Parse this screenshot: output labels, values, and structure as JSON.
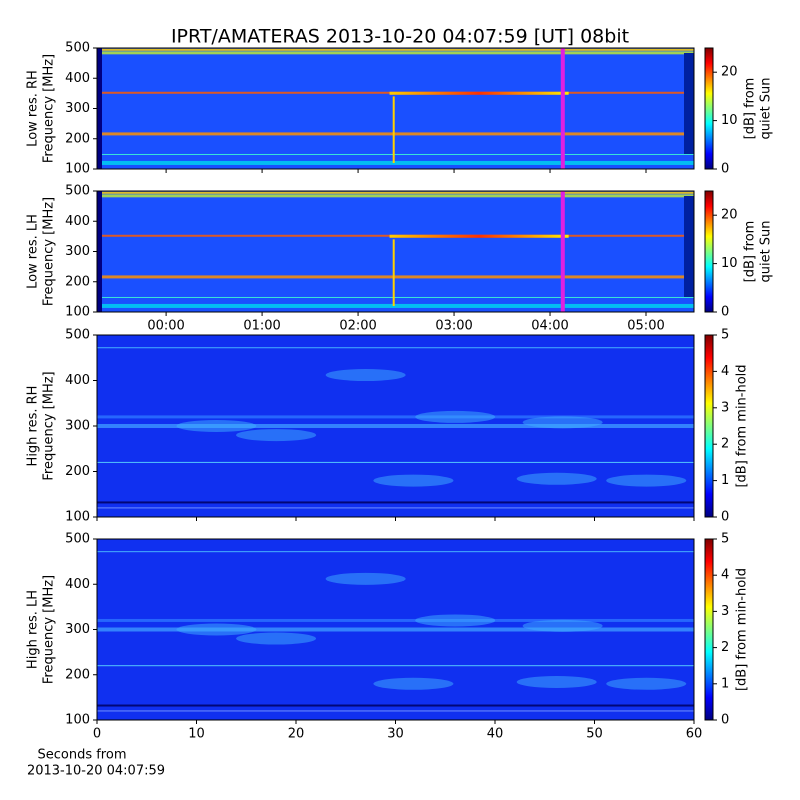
{
  "chart_data": [
    {
      "type": "heatmap",
      "title": "IPRT/AMATERAS 2013-10-20 04:07:59 [UT]   08bit",
      "ylabel": [
        "Low res. RH",
        "Frequency [MHz]"
      ],
      "ylim": [
        100,
        500
      ],
      "yticks": [
        100,
        200,
        300,
        400,
        500
      ],
      "xlim": [
        -0.72,
        5.5
      ],
      "cursor": {
        "x": 4.133,
        "color": "#e020e0"
      },
      "colorbar": {
        "label": [
          "[dB] from",
          "quiet Sun"
        ],
        "clim": [
          0,
          25
        ],
        "ticks": [
          0,
          10,
          20
        ]
      }
    },
    {
      "type": "heatmap",
      "ylabel": [
        "Low res. LH",
        "Frequency [MHz]"
      ],
      "ylim": [
        100,
        500
      ],
      "yticks": [
        100,
        200,
        300,
        400,
        500
      ],
      "xlim": [
        -0.72,
        5.5
      ],
      "xticks": [
        {
          "value": 0,
          "label": "00:00"
        },
        {
          "value": 1,
          "label": "01:00"
        },
        {
          "value": 2,
          "label": "02:00"
        },
        {
          "value": 3,
          "label": "03:00"
        },
        {
          "value": 4,
          "label": "04:00"
        },
        {
          "value": 5,
          "label": "05:00"
        }
      ],
      "cursor": {
        "x": 4.133,
        "color": "#e020e0"
      },
      "colorbar": {
        "label": [
          "[dB] from",
          "quiet Sun"
        ],
        "clim": [
          0,
          25
        ],
        "ticks": [
          0,
          10,
          20
        ]
      }
    },
    {
      "type": "heatmap",
      "ylabel": [
        "High res. RH",
        "Frequency [MHz]"
      ],
      "ylim": [
        100,
        500
      ],
      "yticks": [
        100,
        200,
        300,
        400,
        500
      ],
      "xlim": [
        0,
        60
      ],
      "colorbar": {
        "label": [
          "[dB] from min-hold"
        ],
        "clim": [
          0,
          5
        ],
        "ticks": [
          0,
          1,
          2,
          3,
          4,
          5
        ]
      }
    },
    {
      "type": "heatmap",
      "ylabel": [
        "High res. LH",
        "Frequency [MHz]"
      ],
      "ylim": [
        100,
        500
      ],
      "yticks": [
        100,
        200,
        300,
        400,
        500
      ],
      "xlim": [
        0,
        60
      ],
      "xticks": [
        0,
        10,
        20,
        30,
        40,
        50,
        60
      ],
      "xlabel": [
        "Seconds from",
        "2013-10-20 04:07:59"
      ],
      "colorbar": {
        "label": [
          "[dB] from min-hold"
        ],
        "clim": [
          0,
          5
        ],
        "ticks": [
          0,
          1,
          2,
          3,
          4,
          5
        ]
      }
    }
  ]
}
